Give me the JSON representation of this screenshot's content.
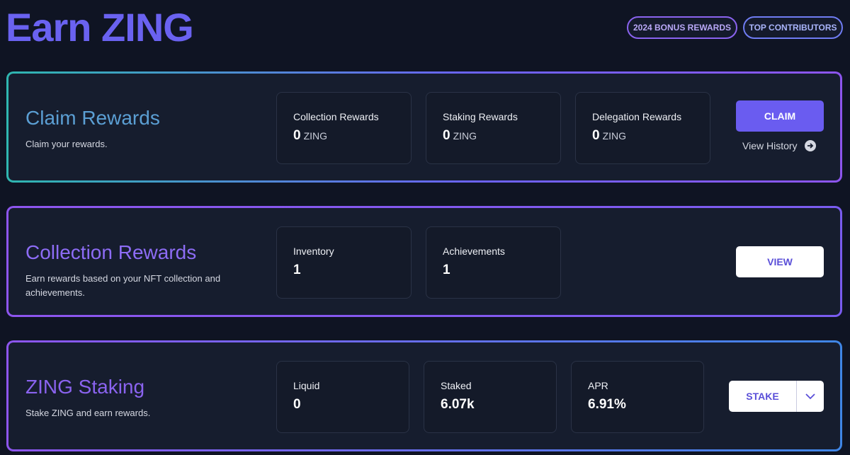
{
  "header": {
    "title": "Earn ZING",
    "buttons": [
      "2024 BONUS REWARDS",
      "TOP CONTRIBUTORS"
    ]
  },
  "sections": [
    {
      "title": "Claim Rewards",
      "description": "Claim your rewards.",
      "stats": [
        {
          "label": "Collection Rewards",
          "value": "0",
          "unit": "ZING"
        },
        {
          "label": "Staking Rewards",
          "value": "0",
          "unit": "ZING"
        },
        {
          "label": "Delegation Rewards",
          "value": "0",
          "unit": "ZING"
        }
      ],
      "action": "CLAIM",
      "link": "View History"
    },
    {
      "title": "Collection Rewards",
      "description": "Earn rewards based on your NFT collection and achievements.",
      "stats": [
        {
          "label": "Inventory",
          "value": "1"
        },
        {
          "label": "Achievements",
          "value": "1"
        }
      ],
      "action": "VIEW"
    },
    {
      "title": "ZING Staking",
      "description": "Stake ZING and earn rewards.",
      "stats": [
        {
          "label": "Liquid",
          "value": "0"
        },
        {
          "label": "Staked",
          "value": "6.07k"
        },
        {
          "label": "APR",
          "value": "6.91%"
        }
      ],
      "action": "STAKE"
    }
  ]
}
